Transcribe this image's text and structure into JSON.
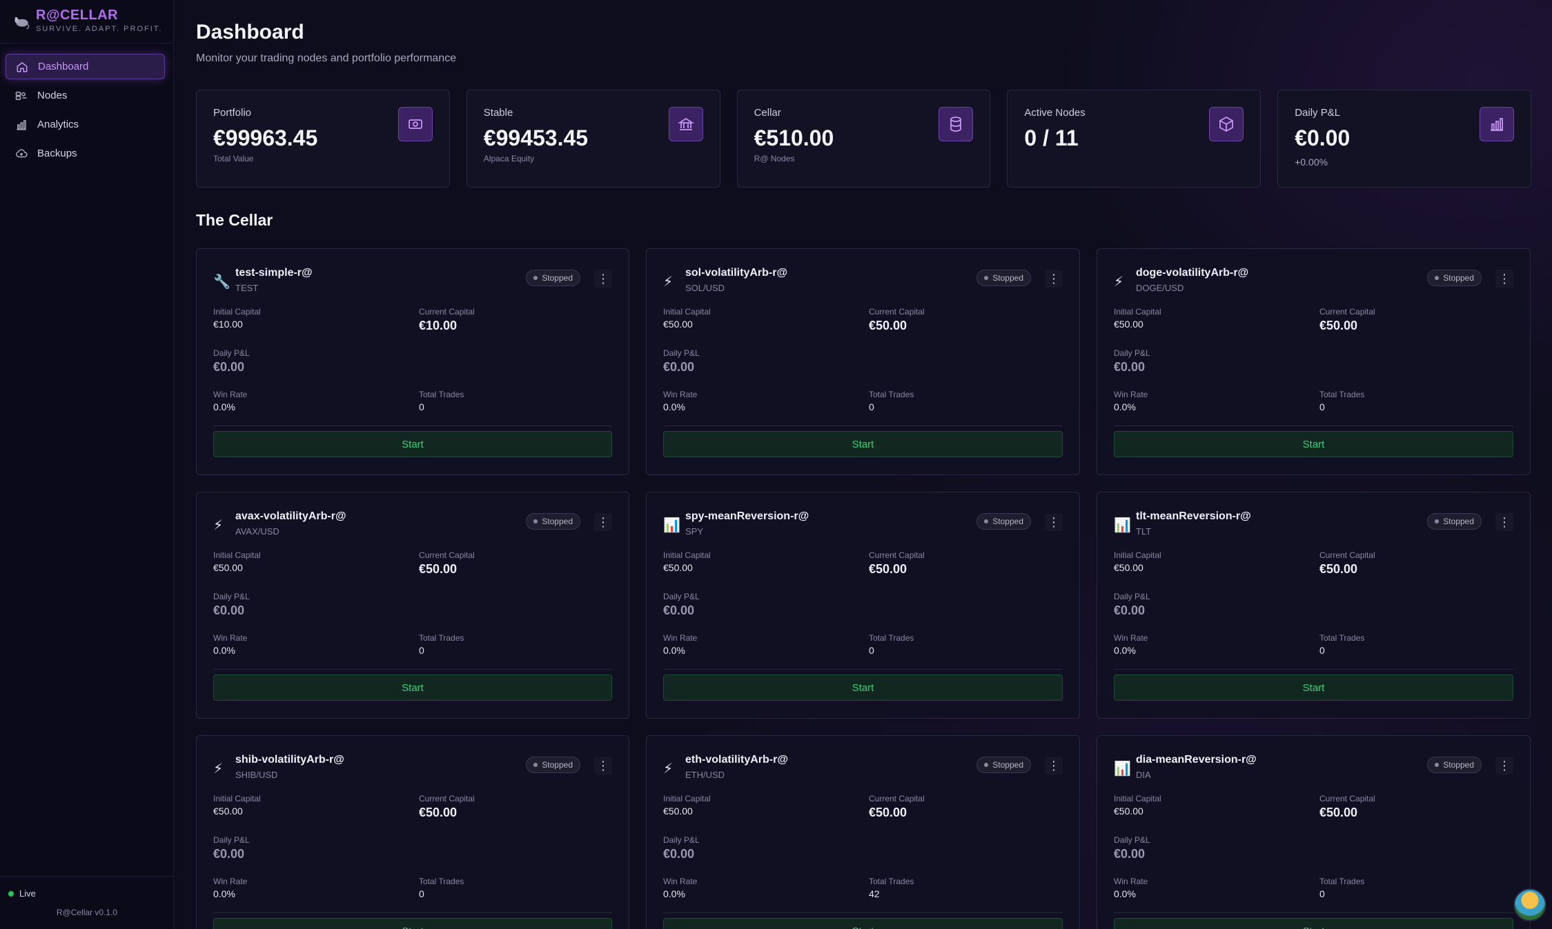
{
  "brand": {
    "title": "R@CELLAR",
    "tagline": "SURVIVE. ADAPT. PROFIT."
  },
  "sidebar": {
    "items": [
      {
        "label": "Dashboard",
        "icon": "home-icon",
        "active": true
      },
      {
        "label": "Nodes",
        "icon": "nodes-icon",
        "active": false
      },
      {
        "label": "Analytics",
        "icon": "bar-chart-icon",
        "active": false
      },
      {
        "label": "Backups",
        "icon": "cloud-upload-icon",
        "active": false
      }
    ],
    "status": "Live",
    "version": "R@Cellar v0.1.0"
  },
  "header": {
    "title": "Dashboard",
    "subtitle": "Monitor your trading nodes and portfolio performance"
  },
  "stats": [
    {
      "label": "Portfolio",
      "value": "€99963.45",
      "sub": "Total Value",
      "icon": "money-icon"
    },
    {
      "label": "Stable",
      "value": "€99453.45",
      "sub": "Alpaca Equity",
      "icon": "bank-icon"
    },
    {
      "label": "Cellar",
      "value": "€510.00",
      "sub": "R@ Nodes",
      "icon": "database-icon"
    },
    {
      "label": "Active Nodes",
      "value": "0 / 11",
      "sub": "",
      "icon": "cube-icon"
    },
    {
      "label": "Daily P&L",
      "value": "€0.00",
      "sub": "+0.00%",
      "icon": "bar-chart-icon"
    }
  ],
  "section_title": "The Cellar",
  "labels": {
    "initial_capital": "Initial Capital",
    "current_capital": "Current Capital",
    "daily_pnl": "Daily P&L",
    "win_rate": "Win Rate",
    "total_trades": "Total Trades",
    "start": "Start",
    "kebab": "⋮"
  },
  "nodes": [
    {
      "name": "test-simple-r@",
      "symbol": "TEST",
      "icon": "wrench-icon",
      "glyph": "🔧",
      "status": "Stopped",
      "initial": "€10.00",
      "current": "€10.00",
      "pnl": "€0.00",
      "win_rate": "0.0%",
      "trades": "0"
    },
    {
      "name": "sol-volatilityArb-r@",
      "symbol": "SOL/USD",
      "icon": "lightning-icon",
      "glyph": "⚡",
      "status": "Stopped",
      "initial": "€50.00",
      "current": "€50.00",
      "pnl": "€0.00",
      "win_rate": "0.0%",
      "trades": "0"
    },
    {
      "name": "doge-volatilityArb-r@",
      "symbol": "DOGE/USD",
      "icon": "lightning-icon",
      "glyph": "⚡",
      "status": "Stopped",
      "initial": "€50.00",
      "current": "€50.00",
      "pnl": "€0.00",
      "win_rate": "0.0%",
      "trades": "0"
    },
    {
      "name": "avax-volatilityArb-r@",
      "symbol": "AVAX/USD",
      "icon": "lightning-icon",
      "glyph": "⚡",
      "status": "Stopped",
      "initial": "€50.00",
      "current": "€50.00",
      "pnl": "€0.00",
      "win_rate": "0.0%",
      "trades": "0"
    },
    {
      "name": "spy-meanReversion-r@",
      "symbol": "SPY",
      "icon": "chart-icon",
      "glyph": "📊",
      "status": "Stopped",
      "initial": "€50.00",
      "current": "€50.00",
      "pnl": "€0.00",
      "win_rate": "0.0%",
      "trades": "0"
    },
    {
      "name": "tlt-meanReversion-r@",
      "symbol": "TLT",
      "icon": "chart-icon",
      "glyph": "📊",
      "status": "Stopped",
      "initial": "€50.00",
      "current": "€50.00",
      "pnl": "€0.00",
      "win_rate": "0.0%",
      "trades": "0"
    },
    {
      "name": "shib-volatilityArb-r@",
      "symbol": "SHIB/USD",
      "icon": "lightning-icon",
      "glyph": "⚡",
      "status": "Stopped",
      "initial": "€50.00",
      "current": "€50.00",
      "pnl": "€0.00",
      "win_rate": "0.0%",
      "trades": "0"
    },
    {
      "name": "eth-volatilityArb-r@",
      "symbol": "ETH/USD",
      "icon": "lightning-icon",
      "glyph": "⚡",
      "status": "Stopped",
      "initial": "€50.00",
      "current": "€50.00",
      "pnl": "€0.00",
      "win_rate": "0.0%",
      "trades": "42"
    },
    {
      "name": "dia-meanReversion-r@",
      "symbol": "DIA",
      "icon": "chart-icon",
      "glyph": "📊",
      "status": "Stopped",
      "initial": "€50.00",
      "current": "€50.00",
      "pnl": "€0.00",
      "win_rate": "0.0%",
      "trades": "0"
    }
  ],
  "colors": {
    "accent": "#b46cf0",
    "success": "#34d27a",
    "background": "#0d0c1c"
  }
}
